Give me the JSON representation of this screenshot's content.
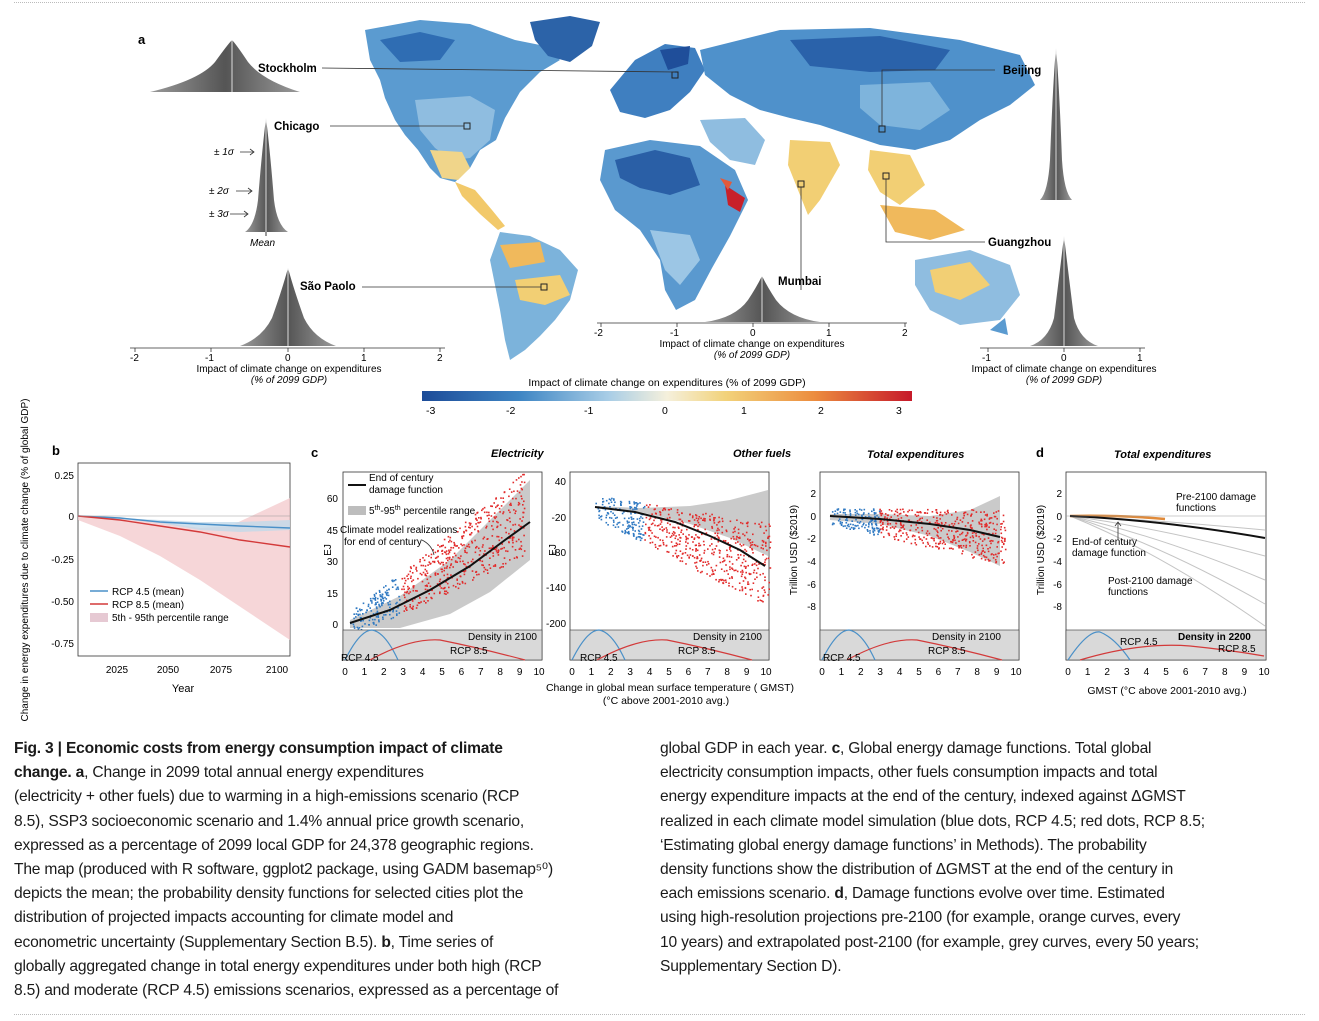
{
  "figure": {
    "panel_letters": {
      "a": "a",
      "b": "b",
      "c": "c",
      "d": "d"
    },
    "panel_a": {
      "cities": [
        "Stockholm",
        "Beijing",
        "Chicago",
        "Guangzhou",
        "São Paolo",
        "Mumbai"
      ],
      "sigma_labels": [
        "± 1σ",
        "± 2σ",
        "± 3σ"
      ],
      "mean_label": "Mean",
      "axis_ticks_left": [
        "-2",
        "-1",
        "0",
        "1",
        "2"
      ],
      "axis_ticks_mid": [
        "-2",
        "-1",
        "0",
        "1",
        "2"
      ],
      "axis_ticks_right": [
        "-1",
        "0",
        "1"
      ],
      "axis_label": "Impact of climate change on expenditures",
      "axis_label_sub": "(% of 2099 GDP)",
      "colorbar_title": "Impact of climate change on expenditures (% of 2099 GDP)",
      "colorbar_ticks": [
        "-3",
        "-2",
        "-1",
        "0",
        "1",
        "2",
        "3"
      ],
      "colors": {
        "blue_dark": "#1f4e9a",
        "blue": "#4a90c8",
        "blue_light": "#a9cde6",
        "neutral": "#f3ecd9",
        "yellow": "#f2cf74",
        "orange": "#ea8a3e",
        "red": "#c8202a",
        "land_gray": "#cfcfcf"
      }
    },
    "panel_b": {
      "ylabel": "Change in energy expenditures due to climate change (% of global GDP)",
      "xlabel": "Year",
      "yticks": [
        "0.25",
        "0",
        "-0.25",
        "-0.50",
        "-0.75"
      ],
      "xticks": [
        "2025",
        "2050",
        "2075",
        "2100"
      ],
      "legend": [
        "RCP 4.5 (mean)",
        "RCP 8.5 (mean)",
        "5th - 95th percentile range"
      ]
    },
    "panel_c": {
      "titles": [
        "Electricity",
        "Other fuels",
        "Total expenditures"
      ],
      "legend_curve": "End of century",
      "legend_curve2": "damage function",
      "legend_range": "5",
      "legend_range_th": "th",
      "legend_range_mid": "-95",
      "legend_range_end": " percentile range",
      "annot1": "Climate model realizations",
      "annot2": "for end of century",
      "ylabel_e": "EJ",
      "ylabel_f": "EJ",
      "ylabel_t": "Trillion USD ($2019)",
      "yticks_e": [
        "60",
        "45",
        "30",
        "15",
        "0"
      ],
      "yticks_f": [
        "40",
        "-20",
        "-80",
        "-140",
        "-200"
      ],
      "yticks_t": [
        "2",
        "0",
        "-2",
        "-4",
        "-6",
        "-8"
      ],
      "density_label": "Density in 2100",
      "rcp45": "RCP 4.5",
      "rcp85": "RCP 8.5",
      "xticks": [
        "0",
        "1",
        "2",
        "3",
        "4",
        "5",
        "6",
        "7",
        "8",
        "9",
        "10"
      ],
      "xlabel": "Change in global mean surface temperature (  GMST)",
      "xlabel_sub": "(°C above 2001-2010 avg.)"
    },
    "panel_d": {
      "title": "Total expenditures",
      "ylabel": "Trillion USD ($2019)",
      "yticks": [
        "2",
        "0",
        "-2",
        "-4",
        "-6",
        "-8"
      ],
      "annot_pre": "Pre-2100 damage",
      "annot_pre2": "functions",
      "annot_end": "End-of century",
      "annot_end2": "damage function",
      "annot_post": "Post-2100 damage",
      "annot_post2": "functions",
      "density_label": "Density in 2200",
      "rcp45": "RCP 4.5",
      "rcp85": "RCP 8.5",
      "xticks": [
        "0",
        "1",
        "2",
        "3",
        "4",
        "5",
        "6",
        "7",
        "8",
        "9",
        "10"
      ],
      "xlabel": "GMST (°C above 2001-2010 avg.)"
    }
  },
  "caption": {
    "left_lines": [
      {
        "bold": "Fig. 3 | Economic costs from energy consumption impact of climate",
        "text": ""
      },
      {
        "bold": "change. a",
        "text": ", Change in 2099 total annual energy expenditures"
      },
      {
        "bold": "",
        "text": "(electricity + other fuels) due to warming in a high-emissions scenario (RCP"
      },
      {
        "bold": "",
        "text": "8.5), SSP3 socioeconomic scenario and 1.4% annual price growth scenario,"
      },
      {
        "bold": "",
        "text": "expressed as a percentage of 2099 local GDP for 24,378 geographic regions."
      },
      {
        "bold": "",
        "text": "The map (produced with R software, ggplot2 package, using GADM basemap⁵⁰)"
      },
      {
        "bold": "",
        "text": "depicts the mean; the probability density functions for selected cities plot the"
      },
      {
        "bold": "",
        "text": "distribution of projected impacts accounting for climate model and"
      },
      {
        "bold": "",
        "text": "econometric uncertainty (Supplementary Section B.5). "
      },
      {
        "bold": "",
        "text": "globally aggregated change in total energy expenditures under both high (RCP"
      },
      {
        "bold": "",
        "text": "8.5) and moderate (RCP 4.5) emissions scenarios, expressed as a percentage of"
      }
    ],
    "left_line8_bold": "b",
    "left_line8_tail": ", Time series of",
    "right_lines": [
      "global GDP in each year. ",
      "electricity consumption impacts, other fuels consumption impacts and total",
      "energy expenditure impacts at the end of the century, indexed against ΔGMST",
      "realized in each climate model simulation (blue dots, RCP 4.5; red dots, RCP 8.5;",
      "‘Estimating global energy damage functions’ in Methods). The probability",
      "density functions show the distribution of ΔGMST at the end of the century in",
      "each emissions scenario. ",
      "using high-resolution projections pre-2100 (for example, orange curves, every",
      "10 years) and extrapolated post-2100 (for example, grey curves, every 50 years;",
      "Supplementary Section D)."
    ],
    "right_line0_bold": "c",
    "right_line0_tail": ", Global energy damage functions. Total global",
    "right_line6_bold": "d",
    "right_line6_tail": ", Damage functions evolve over time. Estimated"
  }
}
